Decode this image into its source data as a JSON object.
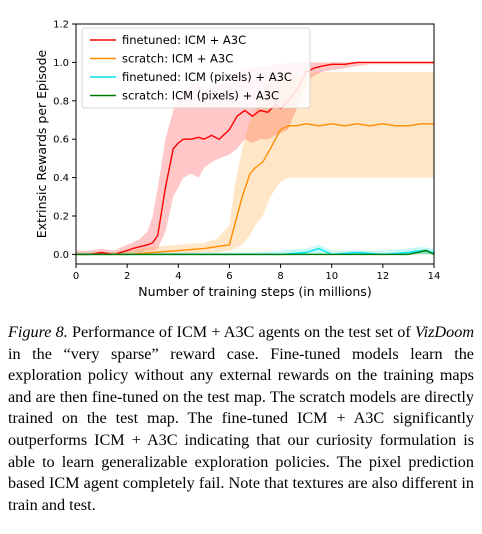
{
  "chart_data": {
    "type": "line",
    "xlabel": "Number of training steps (in millions)",
    "ylabel": "Extrinsic Rewards per Episode",
    "xlim": [
      0,
      14
    ],
    "ylim": [
      -0.05,
      1.2
    ],
    "xticks": [
      "0",
      "2",
      "4",
      "6",
      "8",
      "10",
      "12",
      "14"
    ],
    "yticks": [
      "0.0",
      "0.2",
      "0.4",
      "0.6",
      "0.8",
      "1.0",
      "1.2"
    ],
    "legend_position": "upper-left",
    "grid": false,
    "series": [
      {
        "name": "finetuned: ICM + A3C",
        "color": "#ff0000",
        "x": [
          0,
          0.5,
          1,
          1.5,
          2,
          2.2,
          2.5,
          2.8,
          3.0,
          3.2,
          3.5,
          3.8,
          4.0,
          4.2,
          4.5,
          4.8,
          5.0,
          5.3,
          5.6,
          6.0,
          6.3,
          6.6,
          6.9,
          7.2,
          7.5,
          7.8,
          8.0,
          8.3,
          8.6,
          9.0,
          9.3,
          9.6,
          10,
          10.5,
          11,
          11.5,
          12,
          12.5,
          13,
          13.5,
          14
        ],
        "y": [
          0.0,
          0.0,
          0.01,
          0.0,
          0.02,
          0.03,
          0.04,
          0.05,
          0.06,
          0.1,
          0.35,
          0.55,
          0.58,
          0.6,
          0.6,
          0.61,
          0.6,
          0.62,
          0.6,
          0.65,
          0.72,
          0.75,
          0.72,
          0.75,
          0.74,
          0.78,
          0.76,
          0.8,
          0.85,
          0.95,
          0.97,
          0.98,
          0.99,
          0.99,
          1.0,
          1.0,
          1.0,
          1.0,
          1.0,
          1.0,
          1.0
        ],
        "band_low": [
          0.0,
          0.0,
          0.0,
          0.0,
          0.0,
          0.01,
          0.01,
          0.02,
          0.02,
          0.03,
          0.12,
          0.3,
          0.35,
          0.4,
          0.42,
          0.4,
          0.45,
          0.48,
          0.5,
          0.52,
          0.55,
          0.6,
          0.58,
          0.6,
          0.6,
          0.62,
          0.63,
          0.65,
          0.75,
          0.9,
          0.93,
          0.95,
          0.96,
          0.97,
          0.98,
          0.99,
          0.99,
          0.99,
          0.99,
          0.99,
          0.99
        ],
        "band_high": [
          0.02,
          0.02,
          0.03,
          0.02,
          0.05,
          0.06,
          0.08,
          0.12,
          0.2,
          0.35,
          0.6,
          0.75,
          0.82,
          0.85,
          0.88,
          0.9,
          0.85,
          0.88,
          0.88,
          0.92,
          0.95,
          0.97,
          0.97,
          0.98,
          0.98,
          0.99,
          0.99,
          1.0,
          1.0,
          1.0,
          1.0,
          1.0,
          1.0,
          1.0,
          1.0,
          1.0,
          1.0,
          1.0,
          1.0,
          1.0,
          1.0
        ]
      },
      {
        "name": "scratch: ICM + A3C",
        "color": "#ff8c00",
        "x": [
          0,
          1,
          2,
          3,
          4,
          5,
          5.5,
          6.0,
          6.2,
          6.5,
          6.8,
          7.0,
          7.3,
          7.6,
          8.0,
          8.3,
          8.6,
          9.0,
          9.5,
          10,
          10.5,
          11,
          11.5,
          12,
          12.5,
          13,
          13.5,
          14
        ],
        "y": [
          0.0,
          0.0,
          0.0,
          0.01,
          0.02,
          0.03,
          0.04,
          0.05,
          0.15,
          0.3,
          0.42,
          0.45,
          0.48,
          0.55,
          0.65,
          0.67,
          0.67,
          0.68,
          0.67,
          0.68,
          0.67,
          0.68,
          0.67,
          0.68,
          0.67,
          0.67,
          0.68,
          0.68
        ],
        "band_low": [
          0.0,
          0.0,
          0.0,
          0.0,
          0.0,
          0.01,
          0.01,
          0.02,
          0.03,
          0.05,
          0.1,
          0.15,
          0.2,
          0.3,
          0.38,
          0.4,
          0.4,
          0.4,
          0.4,
          0.4,
          0.4,
          0.4,
          0.4,
          0.4,
          0.4,
          0.4,
          0.4,
          0.4
        ],
        "band_high": [
          0.01,
          0.01,
          0.02,
          0.04,
          0.05,
          0.06,
          0.08,
          0.15,
          0.35,
          0.55,
          0.7,
          0.75,
          0.82,
          0.88,
          0.92,
          0.93,
          0.93,
          0.94,
          0.95,
          0.95,
          0.95,
          0.95,
          0.95,
          0.95,
          0.95,
          0.95,
          0.95,
          0.95
        ]
      },
      {
        "name": "finetuned: ICM (pixels) + A3C",
        "color": "#00e5ee",
        "x": [
          0,
          1,
          2,
          3,
          4,
          5,
          6,
          7,
          8,
          9,
          9.5,
          10,
          11,
          12,
          13,
          13.5,
          14
        ],
        "y": [
          0.0,
          0.0,
          0.0,
          0.0,
          0.0,
          0.0,
          0.0,
          0.0,
          0.0,
          0.01,
          0.03,
          0.0,
          0.01,
          0.0,
          0.01,
          0.02,
          0.01
        ],
        "band_low": [
          0.0,
          0.0,
          0.0,
          0.0,
          0.0,
          0.0,
          0.0,
          0.0,
          0.0,
          0.0,
          0.0,
          0.0,
          0.0,
          0.0,
          0.0,
          0.0,
          0.0
        ],
        "band_high": [
          0.01,
          0.01,
          0.01,
          0.01,
          0.01,
          0.01,
          0.01,
          0.01,
          0.02,
          0.03,
          0.05,
          0.02,
          0.02,
          0.02,
          0.03,
          0.04,
          0.03
        ]
      },
      {
        "name": "scratch: ICM (pixels) + A3C",
        "color": "#007a00",
        "x": [
          0,
          1,
          2,
          3,
          4,
          5,
          6,
          7,
          8,
          9,
          10,
          11,
          12,
          13,
          13.7,
          14
        ],
        "y": [
          0.0,
          0.0,
          0.0,
          0.0,
          0.0,
          0.0,
          0.0,
          0.0,
          0.0,
          0.0,
          0.0,
          0.0,
          0.0,
          0.0,
          0.02,
          0.0
        ],
        "band_low": [
          0.0,
          0.0,
          0.0,
          0.0,
          0.0,
          0.0,
          0.0,
          0.0,
          0.0,
          0.0,
          0.0,
          0.0,
          0.0,
          0.0,
          0.0,
          0.0
        ],
        "band_high": [
          0.005,
          0.005,
          0.005,
          0.005,
          0.005,
          0.005,
          0.005,
          0.005,
          0.005,
          0.005,
          0.005,
          0.005,
          0.005,
          0.005,
          0.03,
          0.01
        ]
      }
    ]
  },
  "caption": {
    "label": "Figure 8.",
    "text_pre": "Performance of ICM + A3C agents on the test set of ",
    "vizdoom": "VizDoom",
    "text_post": "in the “very sparse” reward case. Fine-tuned models learn the exploration policy without any external rewards on the training maps and are then fine-tuned on the test map. The scratch models are directly trained on the test map. The fine-tuned ICM + A3C significantly outperforms ICM + A3C indicating that our curiosity formulation is able to learn generalizable exploration policies. The pixel prediction based ICM agent completely fail. Note that textures are also different in train and test."
  }
}
